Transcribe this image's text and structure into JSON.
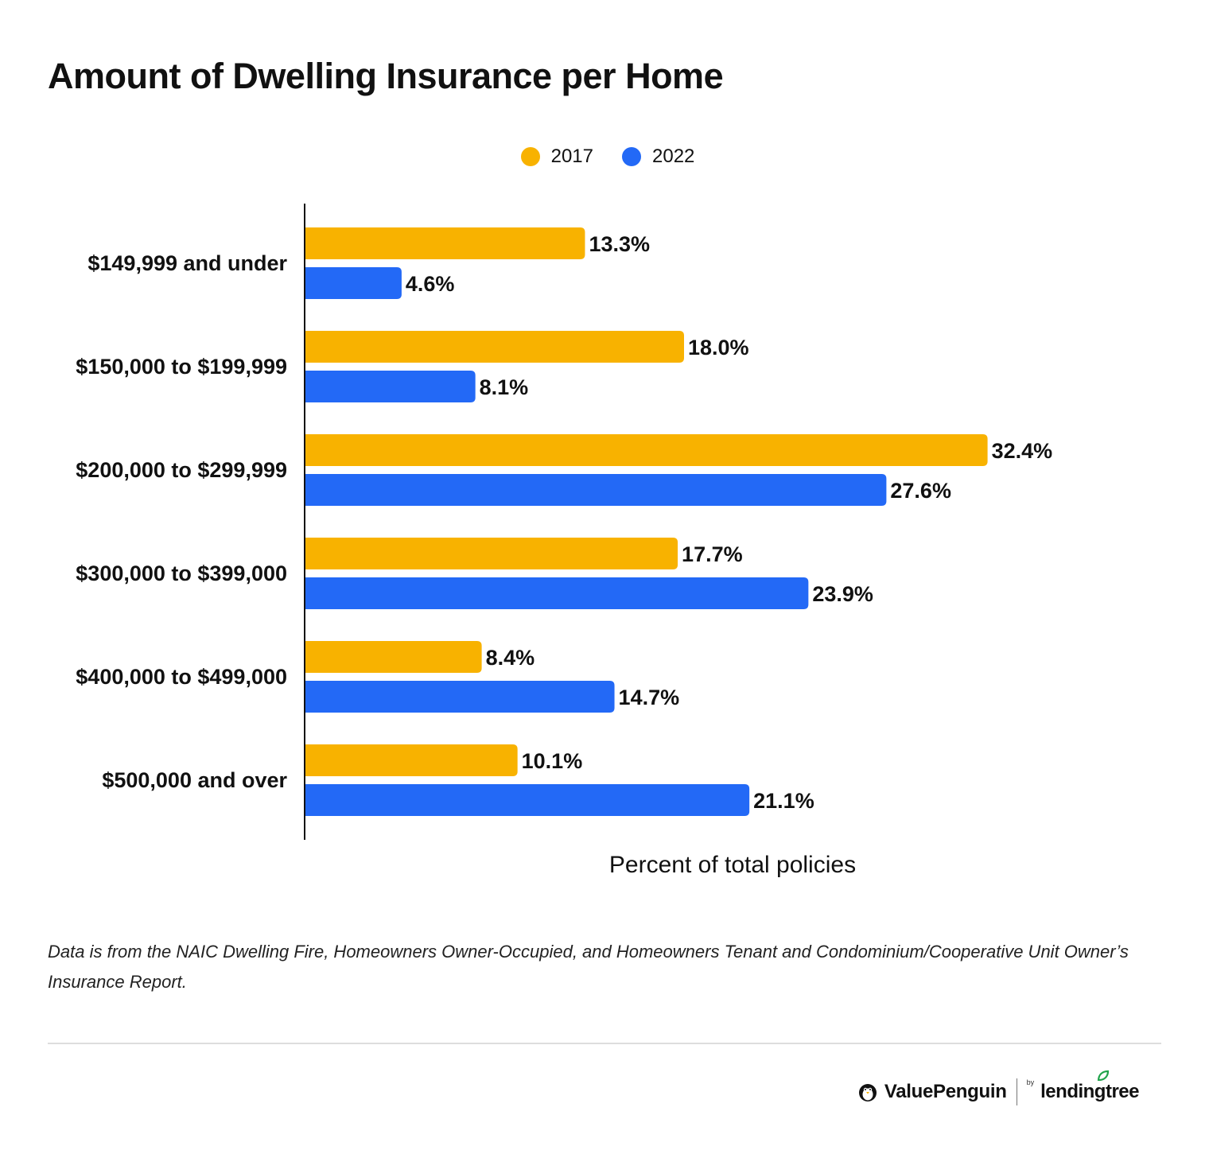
{
  "title": "Amount of Dwelling Insurance per Home",
  "footnote": "Data is from the NAIC Dwelling Fire, Homeowners Owner-Occupied, and Homeowners Tenant and Condominium/Cooperative Unit Owner’s Insurance Report.",
  "brand": {
    "primary": "ValuePenguin",
    "by": "by",
    "secondary": "lendingtree"
  },
  "colors": {
    "2017": "#F8B200",
    "2022": "#2369F6",
    "axis": "#111111",
    "text": "#111111",
    "brand_green": "#21A44B"
  },
  "chart_data": {
    "type": "bar",
    "orientation": "horizontal",
    "title": "Amount of Dwelling Insurance per Home",
    "xlabel": "Percent of total policies",
    "ylabel": "",
    "xlim": [
      0,
      35
    ],
    "grid": false,
    "legend_position": "top-center",
    "value_suffix": "%",
    "categories": [
      "$149,999 and under",
      "$150,000 to $199,999",
      "$200,000 to $299,999",
      "$300,000 to $399,000",
      "$400,000 to $499,000",
      "$500,000 and over"
    ],
    "series": [
      {
        "name": "2017",
        "values": [
          13.3,
          18.0,
          32.4,
          17.7,
          8.4,
          10.1
        ]
      },
      {
        "name": "2022",
        "values": [
          4.6,
          8.1,
          27.6,
          23.9,
          14.7,
          21.1
        ]
      }
    ]
  }
}
